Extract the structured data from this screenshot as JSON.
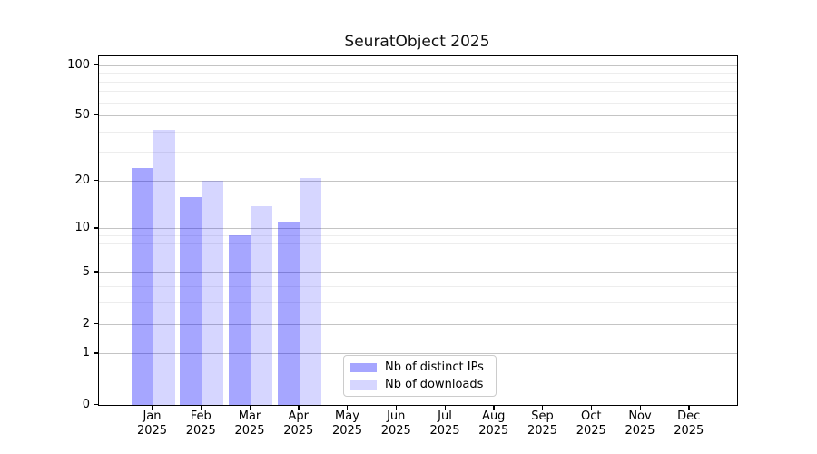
{
  "chart_data": {
    "type": "bar",
    "title": "SeuratObject 2025",
    "xlabel": "",
    "ylabel": "",
    "categories": [
      "Jan",
      "Feb",
      "Mar",
      "Apr",
      "May",
      "Jun",
      "Jul",
      "Aug",
      "Sep",
      "Oct",
      "Nov",
      "Dec"
    ],
    "category_year": "2025",
    "series": [
      {
        "name": "Nb of distinct IPs",
        "color": "rgba(0,0,255,0.35)",
        "values": [
          24,
          16,
          9,
          11,
          0,
          0,
          0,
          0,
          0,
          0,
          0,
          0
        ]
      },
      {
        "name": "Nb of downloads",
        "color": "rgba(0,0,255,0.16)",
        "values": [
          41,
          20,
          14,
          21,
          0,
          0,
          0,
          0,
          0,
          0,
          0,
          0
        ]
      }
    ],
    "yscale": "log1p",
    "ylim": [
      0,
      114
    ],
    "y_ticks": [
      0,
      1,
      2,
      5,
      10,
      20,
      50,
      100
    ],
    "y_minor_ticks": [
      3,
      4,
      6,
      7,
      8,
      9,
      30,
      40,
      60,
      70,
      80,
      90
    ],
    "grid": true,
    "legend": {
      "position": "lower center",
      "items": [
        "Nb of distinct IPs",
        "Nb of downloads"
      ]
    },
    "colors": {
      "major_grid": "#c4c4c4",
      "minor_grid": "#ededed",
      "axis": "#000000",
      "background": "#ffffff"
    }
  }
}
